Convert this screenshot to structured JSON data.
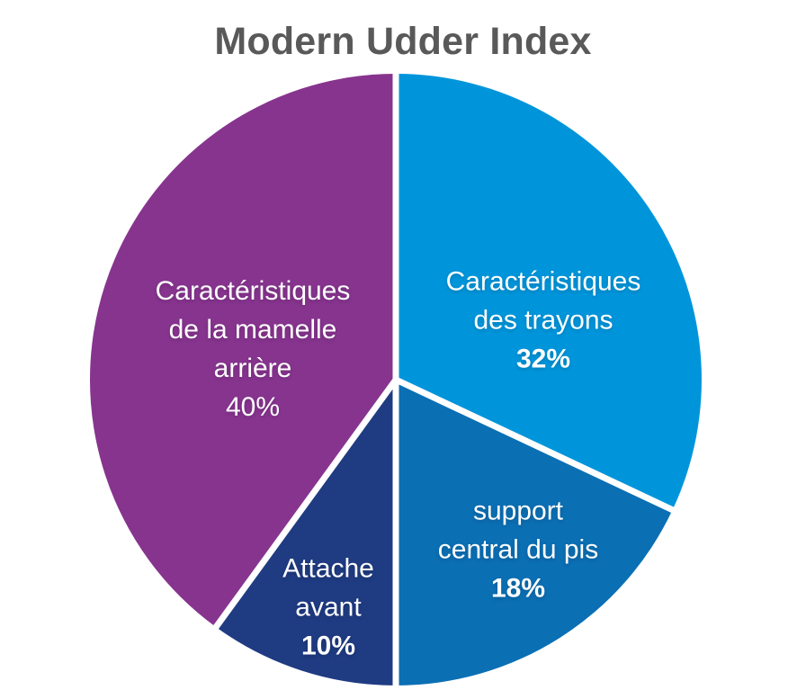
{
  "chart_data": {
    "type": "pie",
    "title": "Modern Udder Index",
    "title_color": "#595959",
    "background_color": "#ffffff",
    "label_color": "#ffffff",
    "divider_color": "#ffffff",
    "legend": "none",
    "start_angle_deg": 0,
    "direction": "clockwise",
    "slices": [
      {
        "id": "trayons",
        "label": "Caractéristiques des trayons",
        "label_lines": [
          "Caractéristiques",
          "des trayons"
        ],
        "pct_label": "32%",
        "value": 32,
        "color": "#0095DB"
      },
      {
        "id": "support-central",
        "label": "support central du pis",
        "label_lines": [
          "support",
          "central du pis"
        ],
        "pct_label": "18%",
        "value": 18,
        "color": "#0B6FB4"
      },
      {
        "id": "attache-avant",
        "label": "Attache avant",
        "label_lines": [
          "Attache",
          "avant"
        ],
        "pct_label": "10%",
        "value": 10,
        "color": "#1F3B82"
      },
      {
        "id": "mamelle-arriere",
        "label": "Caractéristiques de la mamelle arrière",
        "label_lines": [
          "Caractéristiques",
          "de la mamelle",
          "arrière"
        ],
        "pct_label": "40%",
        "value": 40,
        "color": "#87348F"
      }
    ]
  }
}
